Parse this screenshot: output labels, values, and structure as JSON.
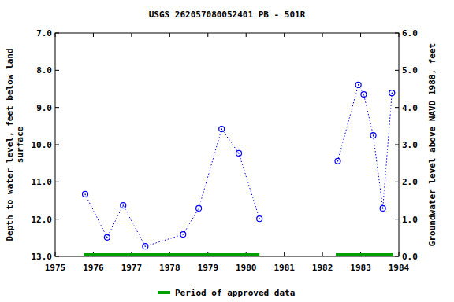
{
  "chart_data": {
    "type": "line",
    "title": "USGS 262057080052401 PB - 501R",
    "ylabel": [
      "Depth to water level, feet below land",
      "surface"
    ],
    "y2label": "Groundwater level above NAVD 1988, feet",
    "x": [
      1975.785,
      1976.36,
      1976.78,
      1977.36,
      1978.35,
      1978.76,
      1979.36,
      1979.81,
      1980.35,
      1981.4,
      1982.4,
      1982.94,
      1983.08,
      1983.33,
      1983.58,
      1983.82
    ],
    "series": [
      {
        "color": "#0000ff",
        "marker": "circle",
        "line_style": "dotted",
        "values": [
          11.33,
          12.49,
          11.63,
          12.73,
          12.41,
          11.71,
          9.58,
          10.23,
          11.99,
          null,
          10.44,
          8.39,
          8.65,
          9.75,
          11.71,
          8.61
        ]
      }
    ],
    "xlim": [
      1975,
      1984
    ],
    "xticks": [
      1975,
      1976,
      1977,
      1978,
      1979,
      1980,
      1981,
      1982,
      1983,
      1984
    ],
    "ylim": [
      13,
      7
    ],
    "yticks": [
      {
        "value": 7,
        "label": "7.0"
      },
      {
        "value": 8,
        "label": "8.0"
      },
      {
        "value": 9,
        "label": "9.0"
      },
      {
        "value": 10,
        "label": "10.0"
      },
      {
        "value": 11,
        "label": "11.0"
      },
      {
        "value": 12,
        "label": "12.0"
      },
      {
        "value": 13,
        "label": "13.0"
      }
    ],
    "y2lim": [
      0,
      6
    ],
    "y2ticks": [
      {
        "value": 0,
        "label": "0.0"
      },
      {
        "value": 1,
        "label": "1.0"
      },
      {
        "value": 2,
        "label": "2.0"
      },
      {
        "value": 3,
        "label": "3.0"
      },
      {
        "value": 4,
        "label": "4.0"
      },
      {
        "value": 5,
        "label": "5.0"
      },
      {
        "value": 6,
        "label": "6.0"
      }
    ],
    "approved": {
      "name": "Period of approved data",
      "color": "#00a000",
      "periods": [
        [
          1975.75,
          1980.35
        ],
        [
          1982.35,
          1983.85
        ]
      ]
    },
    "legend": "bottom",
    "grid": false
  }
}
